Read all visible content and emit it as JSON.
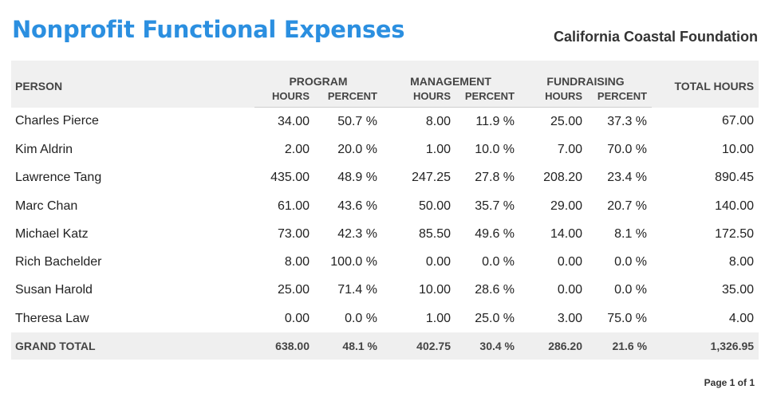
{
  "header": {
    "title": "Nonprofit Functional Expenses",
    "organization": "California Coastal Foundation"
  },
  "table": {
    "person_header": "PERSON",
    "groups": [
      "PROGRAM",
      "MANAGEMENT",
      "FUNDRAISING"
    ],
    "sub_headers": [
      "HOURS",
      "PERCENT"
    ],
    "total_header": "TOTAL HOURS",
    "rows": [
      {
        "name": "Charles Pierce",
        "cells": [
          "34.00",
          "50.7 %",
          "8.00",
          "11.9 %",
          "25.00",
          "37.3 %",
          "67.00"
        ]
      },
      {
        "name": "Kim Aldrin",
        "cells": [
          "2.00",
          "20.0 %",
          "1.00",
          "10.0 %",
          "7.00",
          "70.0 %",
          "10.00"
        ]
      },
      {
        "name": "Lawrence Tang",
        "cells": [
          "435.00",
          "48.9 %",
          "247.25",
          "27.8 %",
          "208.20",
          "23.4 %",
          "890.45"
        ]
      },
      {
        "name": "Marc Chan",
        "cells": [
          "61.00",
          "43.6 %",
          "50.00",
          "35.7 %",
          "29.00",
          "20.7 %",
          "140.00"
        ]
      },
      {
        "name": "Michael Katz",
        "cells": [
          "73.00",
          "42.3 %",
          "85.50",
          "49.6 %",
          "14.00",
          "8.1 %",
          "172.50"
        ]
      },
      {
        "name": "Rich Bachelder",
        "cells": [
          "8.00",
          "100.0 %",
          "0.00",
          "0.0 %",
          "0.00",
          "0.0 %",
          "8.00"
        ]
      },
      {
        "name": "Susan Harold",
        "cells": [
          "25.00",
          "71.4 %",
          "10.00",
          "28.6 %",
          "0.00",
          "0.0 %",
          "35.00"
        ]
      },
      {
        "name": "Theresa Law",
        "cells": [
          "0.00",
          "0.0 %",
          "1.00",
          "25.0 %",
          "3.00",
          "75.0 %",
          "4.00"
        ]
      }
    ],
    "grand_total": {
      "label": "GRAND TOTAL",
      "cells": [
        "638.00",
        "48.1 %",
        "402.75",
        "30.4 %",
        "286.20",
        "21.6 %",
        "1,326.95"
      ]
    }
  },
  "footer": {
    "page": "Page 1 of 1"
  },
  "colors": {
    "title": "#2b8fe0",
    "header_bg": "#f0f0f0"
  }
}
